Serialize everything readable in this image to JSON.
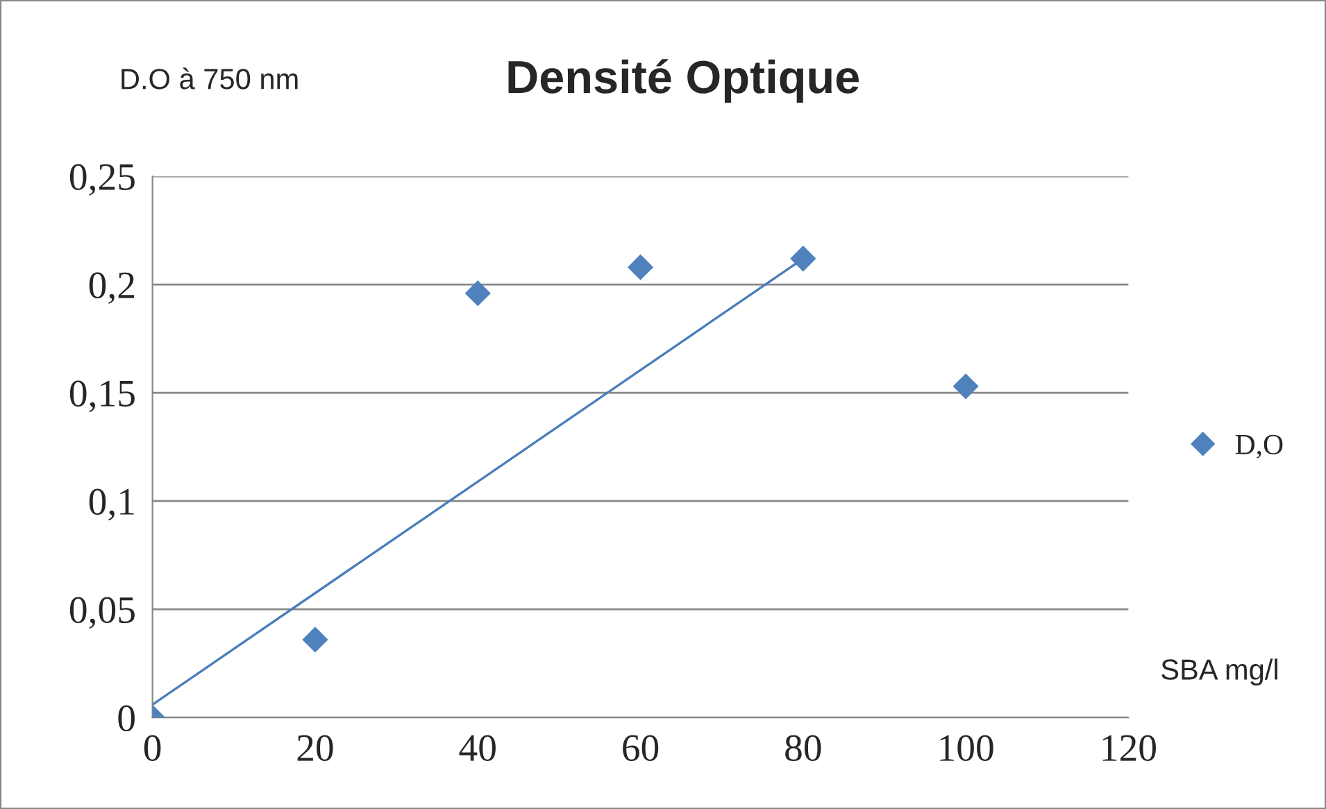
{
  "chart_data": {
    "type": "scatter",
    "title": "Densité Optique",
    "xlabel": "SBA mg/l",
    "ylabel": "D.O à 750 nm",
    "series": [
      {
        "name": "D,O",
        "color": "#4f81bd",
        "marker": "diamond",
        "x": [
          0,
          20,
          40,
          60,
          80,
          100
        ],
        "values": [
          0,
          0.036,
          0.196,
          0.208,
          0.212,
          0.153
        ]
      },
      {
        "type": "line",
        "color": "#4a7ebb",
        "marker": "none",
        "x": [
          0,
          80
        ],
        "values": [
          0.006,
          0.212
        ]
      }
    ],
    "xlim": [
      0,
      120
    ],
    "xticks": [
      0,
      20,
      40,
      60,
      80,
      100,
      120
    ],
    "ylim": [
      0,
      0.25
    ],
    "yticks": [
      {
        "value": 0,
        "label": "0"
      },
      {
        "value": 0.05,
        "label": "0,05"
      },
      {
        "value": 0.1,
        "label": "0,1"
      },
      {
        "value": 0.15,
        "label": "0,15"
      },
      {
        "value": 0.2,
        "label": "0,2"
      },
      {
        "value": 0.25,
        "label": "0,25"
      }
    ],
    "grid": "y",
    "legend": "right"
  }
}
